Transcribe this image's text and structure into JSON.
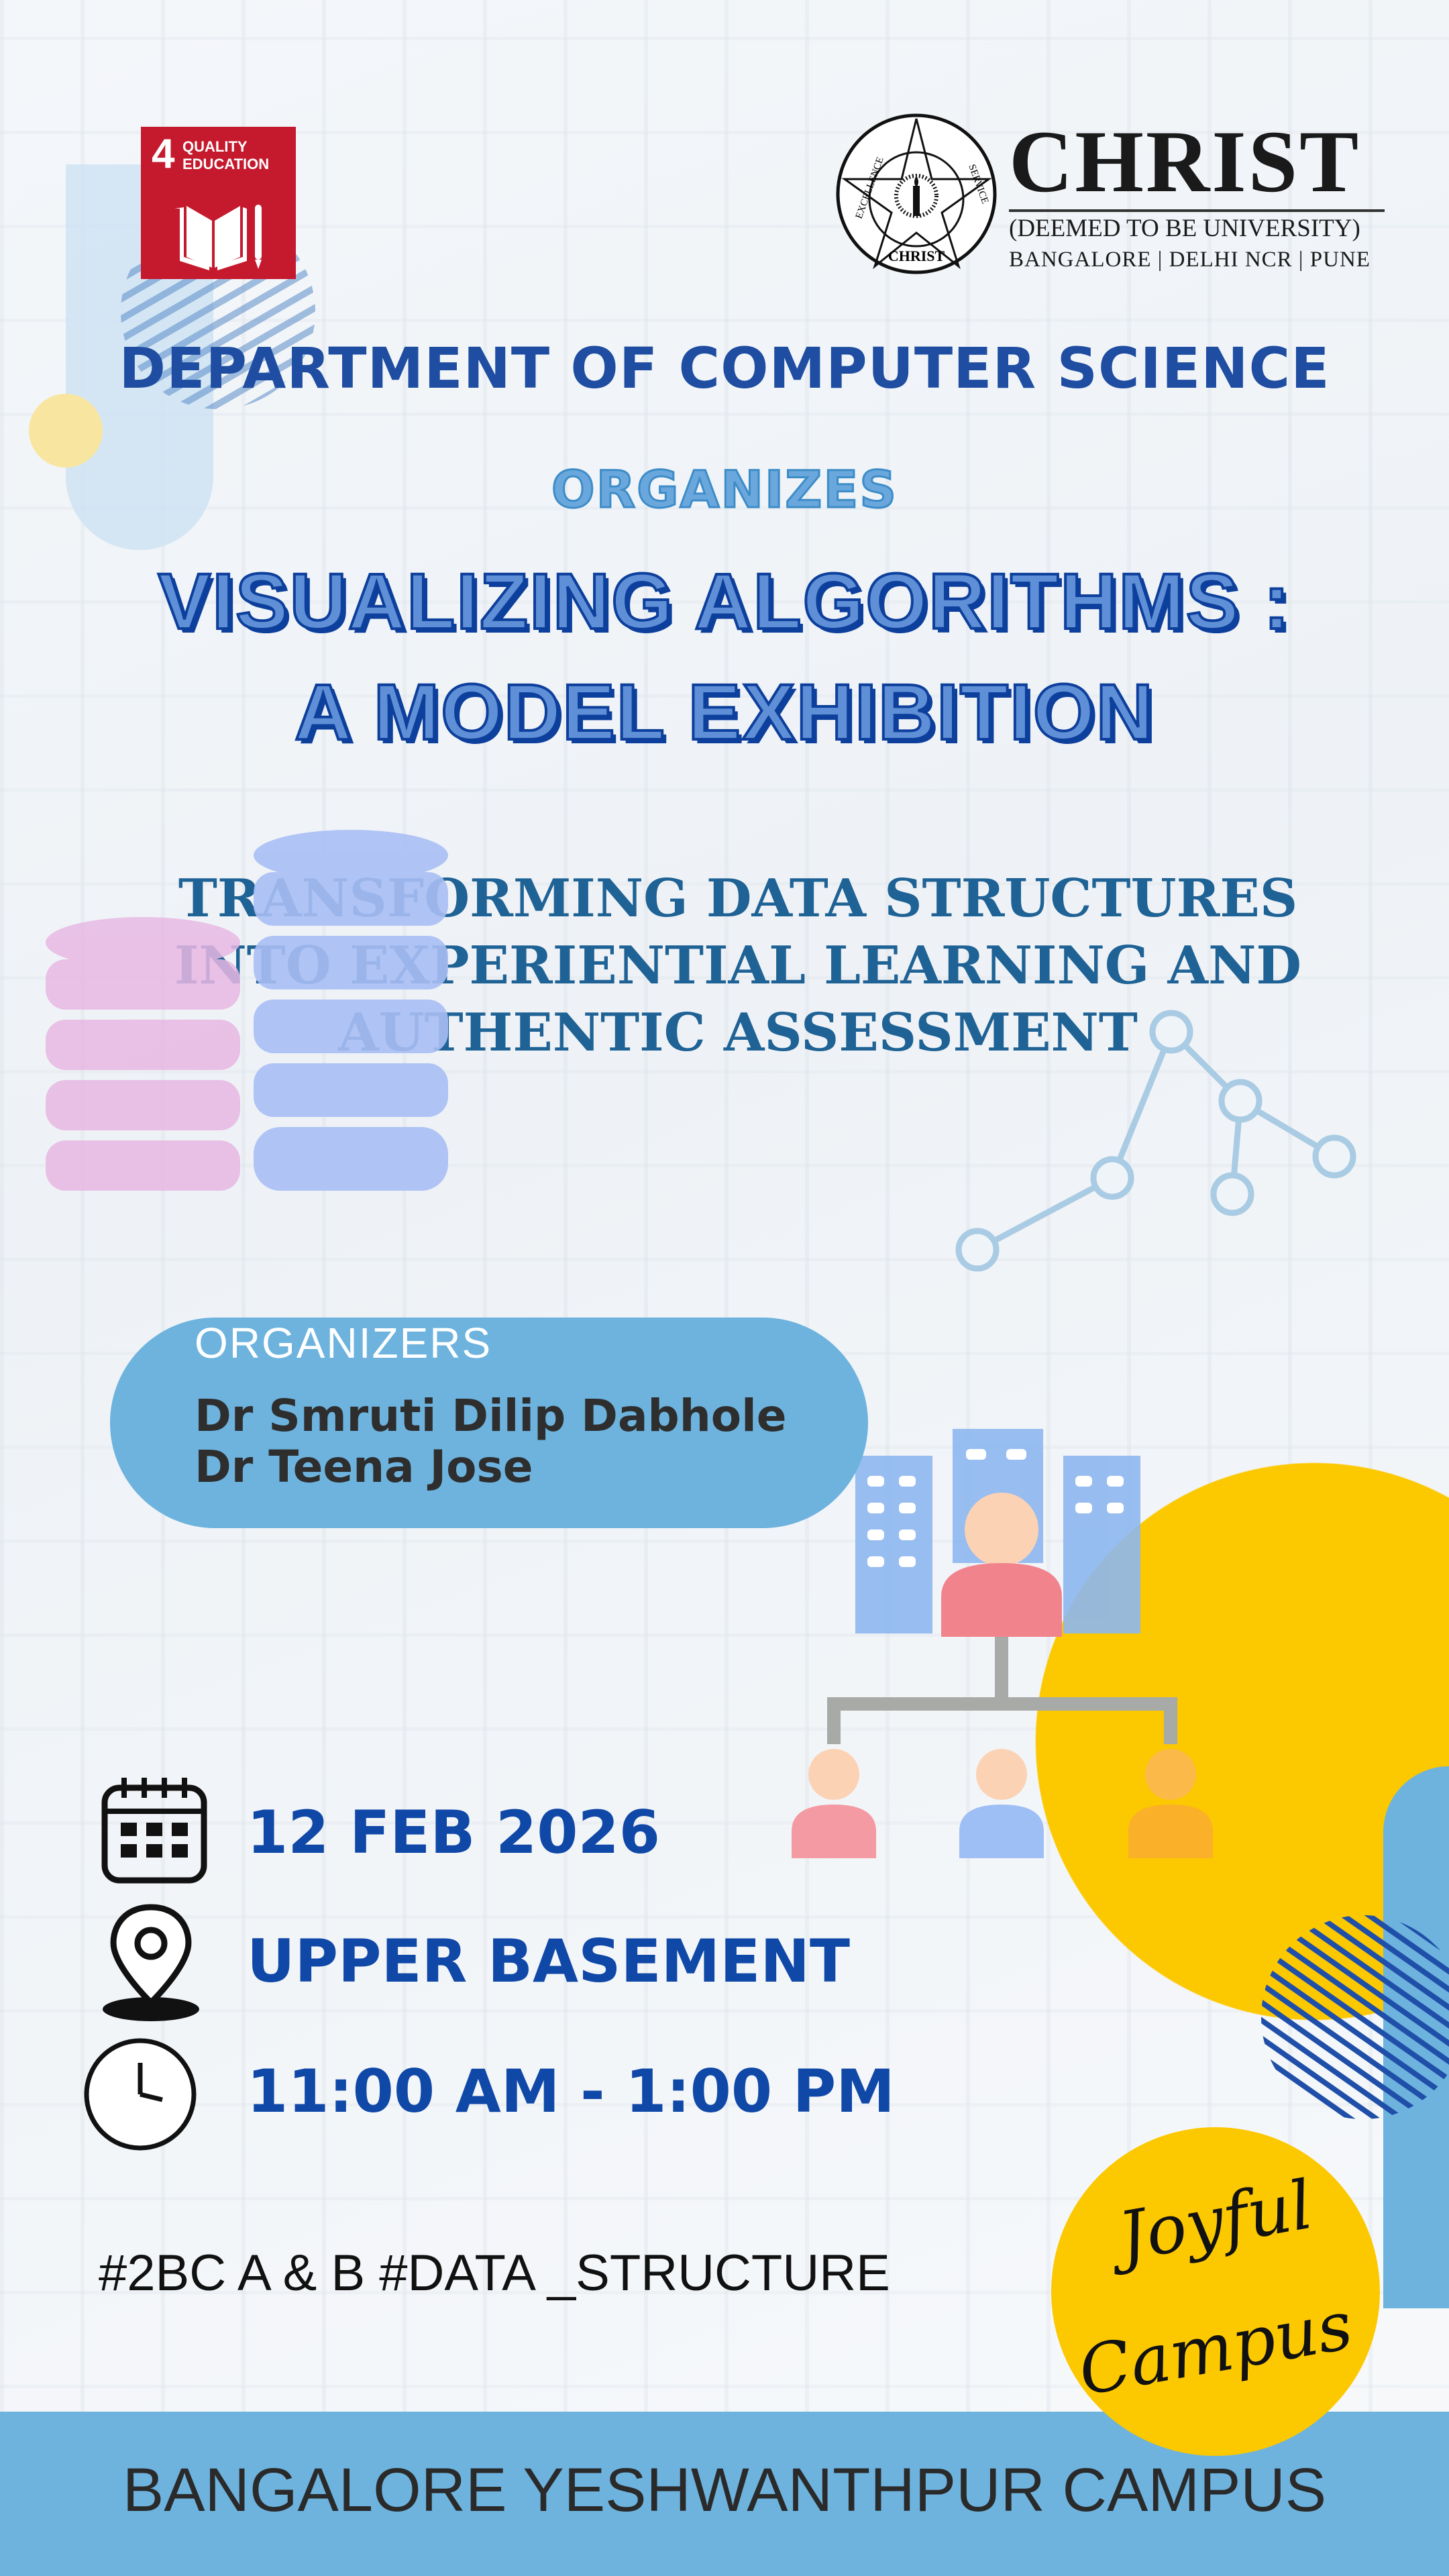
{
  "sdg_badge": {
    "number": "4",
    "label_line1": "QUALITY",
    "label_line2": "EDUCATION",
    "color": "#c5192d"
  },
  "university": {
    "name": "CHRIST",
    "subtitle": "(DEEMED TO BE UNIVERSITY)",
    "locations": "BANGALORE | DELHI NCR | PUNE",
    "seal_text": [
      "EXCELLENCE",
      "SERVICE",
      "CHRIST"
    ]
  },
  "department": "DEPARTMENT OF COMPUTER SCIENCE",
  "organizes": "ORGANIZES",
  "title_line1": "VISUALIZING ALGORITHMS :",
  "title_line2": "A MODEL EXHIBITION",
  "subtitle_lines": [
    "TRANSFORMING DATA STRUCTURES",
    "INTO EXPERIENTIAL LEARNING AND",
    "AUTHENTIC ASSESSMENT"
  ],
  "organizers": {
    "label": "ORGANIZERS",
    "names": [
      "Dr Smruti Dilip Dabhole",
      "Dr Teena Jose"
    ]
  },
  "event": {
    "date": "12 FEB 2026",
    "venue": "UPPER BASEMENT",
    "time": "11:00 AM - 1:00 PM",
    "icons": [
      "calendar-icon",
      "location-pin-icon",
      "clock-icon"
    ]
  },
  "hashtags": "#2BC A & B  #DATA _STRUCTURE",
  "badge": {
    "line1": "Joyful",
    "line2": "Campus"
  },
  "footer": "BANGALORE YESHWANTHPUR CAMPUS",
  "colors": {
    "primary_blue": "#1048a8",
    "light_blue": "#6db3de",
    "yellow": "#fcc800",
    "sdg_red": "#c5192d"
  }
}
